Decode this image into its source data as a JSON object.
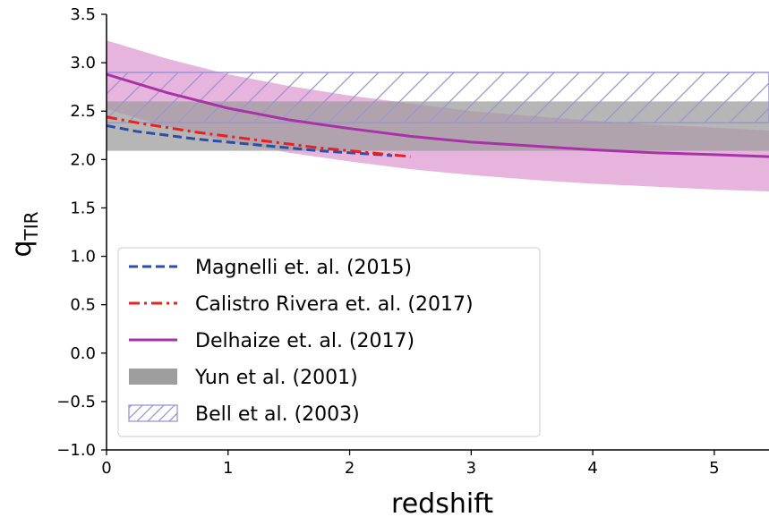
{
  "chart_data": {
    "type": "line",
    "title": "",
    "xlabel": "redshift",
    "ylabel": "q",
    "ylabel_sub": "TIR",
    "xlim": [
      0,
      5.45
    ],
    "ylim": [
      -1.0,
      3.5
    ],
    "x_ticks": [
      0,
      1,
      2,
      3,
      4,
      5
    ],
    "x_tick_labels": [
      "0",
      "1",
      "2",
      "3",
      "4",
      "5"
    ],
    "y_ticks": [
      -1.0,
      -0.5,
      0.0,
      0.5,
      1.0,
      1.5,
      2.0,
      2.5,
      3.0,
      3.5
    ],
    "y_tick_labels": [
      "−1.0",
      "−0.5",
      "0.0",
      "0.5",
      "1.0",
      "1.5",
      "2.0",
      "2.5",
      "3.0",
      "3.5"
    ],
    "grid": false,
    "legend_position": "lower-left",
    "series": [
      {
        "name": "Magnelli et. al. (2015)",
        "kind": "line",
        "style": "dashed",
        "color": "#2a4fa8",
        "x": [
          0.0,
          0.25,
          0.5,
          0.75,
          1.0,
          1.25,
          1.5,
          1.75,
          2.0,
          2.25,
          2.35
        ],
        "y": [
          2.35,
          2.29,
          2.25,
          2.21,
          2.18,
          2.15,
          2.12,
          2.09,
          2.07,
          2.05,
          2.04
        ]
      },
      {
        "name": "Calistro Rivera et. al. (2017)",
        "kind": "line",
        "style": "dashdot",
        "color": "#e8211d",
        "x": [
          0.0,
          0.25,
          0.5,
          0.75,
          1.0,
          1.25,
          1.5,
          1.75,
          2.0,
          2.25,
          2.5
        ],
        "y": [
          2.44,
          2.38,
          2.33,
          2.28,
          2.24,
          2.2,
          2.16,
          2.12,
          2.09,
          2.06,
          2.03
        ]
      },
      {
        "name": "Delhaize et. al. (2017)",
        "kind": "band_line",
        "color": "#a833a8",
        "band_color": "#d98ccb",
        "x": [
          0.0,
          0.5,
          1.0,
          1.5,
          2.0,
          2.5,
          3.0,
          3.5,
          4.0,
          4.5,
          5.0,
          5.45
        ],
        "y": [
          2.88,
          2.69,
          2.53,
          2.41,
          2.32,
          2.24,
          2.18,
          2.14,
          2.1,
          2.07,
          2.05,
          2.03
        ],
        "y_upper": [
          3.23,
          3.04,
          2.88,
          2.76,
          2.66,
          2.58,
          2.5,
          2.45,
          2.4,
          2.36,
          2.33,
          2.3
        ],
        "y_lower": [
          2.52,
          2.34,
          2.19,
          2.07,
          1.98,
          1.9,
          1.84,
          1.79,
          1.75,
          1.72,
          1.69,
          1.67
        ]
      },
      {
        "name": "Yun et al. (2001)",
        "kind": "hband",
        "color": "#9e9e9e",
        "y_range": [
          2.09,
          2.6
        ]
      },
      {
        "name": "Bell et al. (2003)",
        "kind": "hband_hatched",
        "color": "#9b93d8",
        "y_range": [
          2.38,
          2.9
        ]
      }
    ]
  }
}
